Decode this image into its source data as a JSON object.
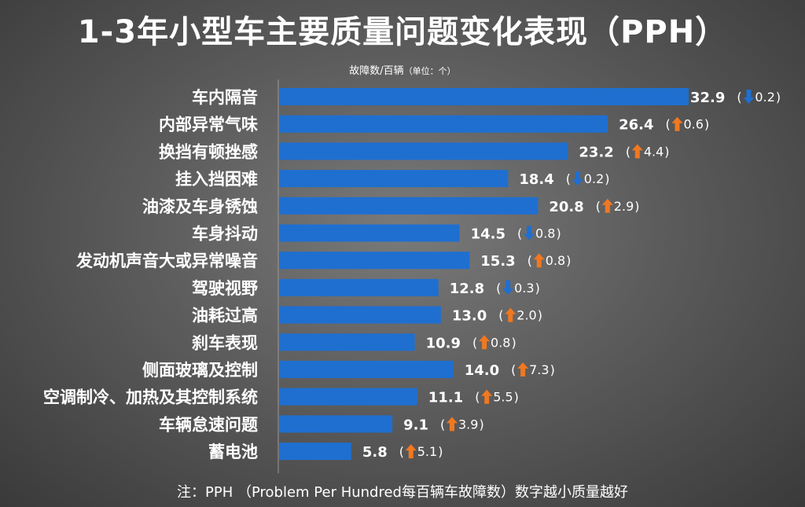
{
  "title": "1-3年小型车主要质量问题变化表现（PPH）",
  "unit_label": "故障数/百辆",
  "unit_note": "（单位：个）",
  "footnote": "注：PPH （Problem Per Hundred每百辆车故障数）数字越小质量越好",
  "colors": {
    "bar": "#1f6fd0",
    "up": "#f07820",
    "down": "#1f6fd0",
    "text": "#ffffff"
  },
  "chart_data": {
    "type": "bar",
    "orientation": "horizontal",
    "grid": false,
    "legend": "none",
    "categories": [
      "车内隔音",
      "内部异常气味",
      "换挡有顿挫感",
      "挂入挡困难",
      "油漆及车身锈蚀",
      "车身抖动",
      "发动机声音大或异常噪音",
      "驾驶视野",
      "油耗过高",
      "刹车表现",
      "侧面玻璃及控制",
      "空调制冷、加热及其控制系统",
      "车辆怠速问题",
      "蓄电池"
    ],
    "values": [
      32.9,
      26.4,
      23.2,
      18.4,
      20.8,
      14.5,
      15.3,
      12.8,
      13.0,
      10.9,
      14.0,
      11.1,
      9.1,
      5.8
    ],
    "value_labels": [
      "32.9",
      "26.4",
      "23.2",
      "18.4",
      "20.8",
      "14.5",
      "15.3",
      "12.8",
      "13.0",
      "10.9",
      "14.0",
      "11.1",
      "9.1",
      "5.8"
    ],
    "changes": [
      {
        "direction": "down",
        "label": "0.2"
      },
      {
        "direction": "up",
        "label": "0.6"
      },
      {
        "direction": "up",
        "label": "4.4"
      },
      {
        "direction": "down",
        "label": "0.2"
      },
      {
        "direction": "up",
        "label": "2.9"
      },
      {
        "direction": "down",
        "label": "0.8"
      },
      {
        "direction": "up",
        "label": "0.8"
      },
      {
        "direction": "down",
        "label": "0.3"
      },
      {
        "direction": "up",
        "label": "2.0"
      },
      {
        "direction": "up",
        "label": "0.8"
      },
      {
        "direction": "up",
        "label": "7.3"
      },
      {
        "direction": "up",
        "label": "5.5"
      },
      {
        "direction": "up",
        "label": "3.9"
      },
      {
        "direction": "up",
        "label": "5.1"
      }
    ],
    "xlim": [
      0,
      32.9
    ]
  }
}
